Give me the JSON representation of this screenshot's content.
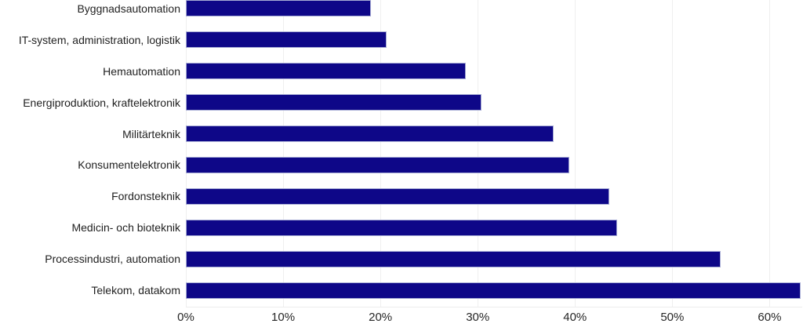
{
  "chart_data": {
    "type": "bar",
    "orientation": "horizontal",
    "title": "",
    "xlabel": "",
    "ylabel": "",
    "categories": [
      "Byggnadsautomation",
      "IT-system, administration, logistik",
      "Hemautomation",
      "Energiproduktion, kraftelektronik",
      "Militärteknik",
      "Konsumentelektronik",
      "Fordonsteknik",
      "Medicin- och bioteknik",
      "Processindustri, automation",
      "Telekom, datakom"
    ],
    "values": [
      19.0,
      20.6,
      28.8,
      30.4,
      37.8,
      39.4,
      43.5,
      44.3,
      55.0,
      63.2
    ],
    "unit": "%",
    "x_tick_labels": [
      "0%",
      "10%",
      "20%",
      "30%",
      "40%",
      "50%",
      "60%"
    ],
    "x_tick_values": [
      0,
      10,
      20,
      30,
      40,
      50,
      60
    ],
    "xlim": [
      0,
      63.4
    ],
    "grid": "vertical",
    "legend": "none",
    "colors": {
      "bar_fill": "#0e0788",
      "bar_border": "#a9aed6",
      "gridline": "#efefef",
      "axis_line": "#ededed",
      "category_text": "#1f1f1f",
      "tick_text": "#262626",
      "background": "#ffffff"
    }
  }
}
